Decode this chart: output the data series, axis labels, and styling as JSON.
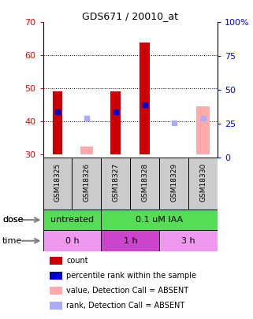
{
  "title": "GDS671 / 20010_at",
  "samples": [
    "GSM18325",
    "GSM18326",
    "GSM18327",
    "GSM18328",
    "GSM18329",
    "GSM18330"
  ],
  "ylim_left": [
    29,
    70
  ],
  "ylim_right": [
    0,
    100
  ],
  "yticks_left": [
    30,
    40,
    50,
    60,
    70
  ],
  "yticks_right": [
    0,
    25,
    50,
    75,
    100
  ],
  "yticklabels_right": [
    "0",
    "25",
    "50",
    "75",
    "100%"
  ],
  "bar_bottom": 30,
  "count_values": [
    49,
    0,
    49,
    64,
    0,
    0
  ],
  "count_color": "#cc0000",
  "rank_values": [
    43,
    0,
    43,
    45,
    0,
    0
  ],
  "rank_color": "#0000cc",
  "absent_value_values": [
    0,
    32.5,
    0,
    0,
    0,
    44.5
  ],
  "absent_value_color": "#ffaaaa",
  "absent_rank_values": [
    0,
    41,
    0,
    0,
    39.5,
    41
  ],
  "absent_rank_color": "#aaaaff",
  "dose_color": "#55dd55",
  "time_color_light": "#ee99ee",
  "time_color_dark": "#cc44cc",
  "legend_items": [
    {
      "label": "count",
      "color": "#cc0000"
    },
    {
      "label": "percentile rank within the sample",
      "color": "#0000cc"
    },
    {
      "label": "value, Detection Call = ABSENT",
      "color": "#ffaaaa"
    },
    {
      "label": "rank, Detection Call = ABSENT",
      "color": "#aaaaff"
    }
  ],
  "bar_width": 0.35,
  "absent_bar_width": 0.45,
  "grid_color": "#000000"
}
